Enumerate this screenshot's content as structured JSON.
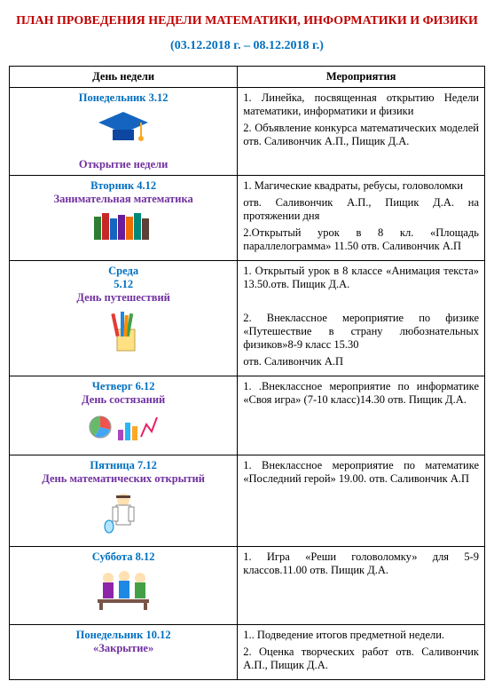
{
  "colors": {
    "title": "#c00000",
    "date": "#0070c0",
    "dayname": "#0070c0",
    "daysub": "#7030a0",
    "border": "#000000",
    "text": "#000000"
  },
  "fonts": {
    "base_family": "Times New Roman",
    "title_size_pt": 14,
    "body_size_pt": 12.5
  },
  "title": "ПЛАН ПРОВЕДЕНИЯ НЕДЕЛИ МАТЕМАТИКИ, ИНФОРМАТИКИ И ФИЗИКИ",
  "date_range": "(03.12.2018 г. – 08.12.2018 г.)",
  "headers": {
    "day": "День недели",
    "events": "Мероприятия"
  },
  "rows": [
    {
      "day_line": "Понедельник  3.12",
      "sub_line": "Открытие недели",
      "icon": "grad-cap",
      "events": [
        "1. Линейка, посвященная открытию Недели математики, информатики и физики",
        "2. Объявление конкурса математических моделей отв. Саливончик А.П., Пищик Д.А."
      ]
    },
    {
      "day_line": "Вторник 4.12",
      "sub_line": "Занимательная математика",
      "icon": "books",
      "events": [
        "1.   Магические   квадраты,   ребусы, головоломки",
        "отв.  Саливончик  А.П.,  Пищик  Д.А.  на протяжении дня",
        "2.Открытый урок в 8 кл. «Площадь параллелограмма» 11.50 отв. Саливончик А.П"
      ]
    },
    {
      "day_line": "Среда",
      "day_line2": "5.12",
      "sub_line": "День путешествий",
      "icon": "pencils",
      "events": [
        "1. Открытый урок в 8 классе «Анимация текста» 13.50.отв. Пищик Д.А.",
        "",
        "2. Внеклассное мероприятие по физике «Путешествие в страну любознательных физиков»8-9 класс 15.30",
        "отв. Саливончик А.П"
      ]
    },
    {
      "day_line": "Четверг 6.12",
      "sub_line": "День состязаний",
      "icon": "charts",
      "events": [
        "1. .Внеклассное мероприятие по информатике «Своя игра» (7-10 класс)14.30 отв. Пищик Д.А."
      ]
    },
    {
      "day_line": "Пятница 7.12",
      "sub_line": "День математических открытий",
      "icon": "scientist",
      "events": [
        "1. Внеклассное мероприятие по математике «Последний герой» 19.00. отв. Саливончик А.П"
      ]
    },
    {
      "day_line": "Суббота 8.12",
      "sub_line": "",
      "icon": "students",
      "events": [
        "1. Игра «Реши головоломку» для 5-9 классов.11.00 отв. Пищик Д.А."
      ]
    },
    {
      "day_line": "Понедельник  10.12",
      "sub_line": "«Закрытие»",
      "icon": "",
      "events": [
        "1.. Подведение итогов предметной недели.",
        "2. Оценка творческих работ отв. Саливончик А.П., Пищик Д.А."
      ]
    }
  ]
}
